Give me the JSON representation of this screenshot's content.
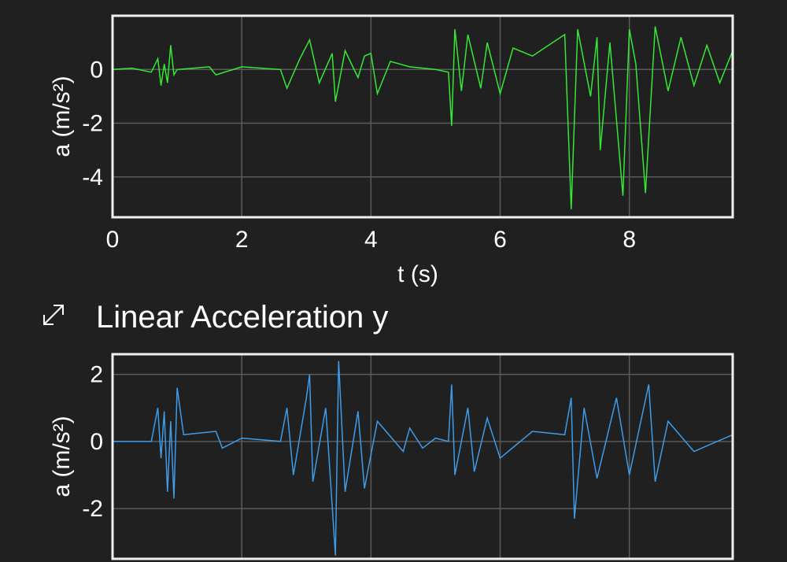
{
  "chart_data": [
    {
      "type": "line",
      "title": "",
      "xlabel": "t (s)",
      "ylabel": "a (m/s²)",
      "xlim": [
        0,
        9.6
      ],
      "ylim": [
        -5.5,
        2
      ],
      "xticks": [
        0,
        2,
        4,
        6,
        8
      ],
      "yticks": [
        0,
        -2,
        -4
      ],
      "grid": true,
      "color": "#35e834",
      "series": [
        {
          "values": [
            [
              0.0,
              0.0
            ],
            [
              0.3,
              0.05
            ],
            [
              0.6,
              -0.1
            ],
            [
              0.7,
              0.4
            ],
            [
              0.75,
              -0.6
            ],
            [
              0.8,
              0.2
            ],
            [
              0.85,
              -0.5
            ],
            [
              0.9,
              0.9
            ],
            [
              0.95,
              -0.2
            ],
            [
              1.0,
              0.0
            ],
            [
              1.5,
              0.1
            ],
            [
              1.6,
              -0.2
            ],
            [
              2.0,
              0.1
            ],
            [
              2.6,
              0.0
            ],
            [
              2.7,
              -0.7
            ],
            [
              2.9,
              0.4
            ],
            [
              3.05,
              1.1
            ],
            [
              3.2,
              -0.5
            ],
            [
              3.4,
              0.6
            ],
            [
              3.45,
              -1.2
            ],
            [
              3.6,
              0.7
            ],
            [
              3.8,
              -0.3
            ],
            [
              3.9,
              0.5
            ],
            [
              4.0,
              0.6
            ],
            [
              4.1,
              -0.9
            ],
            [
              4.3,
              0.3
            ],
            [
              4.6,
              0.1
            ],
            [
              5.0,
              0.0
            ],
            [
              5.2,
              -0.1
            ],
            [
              5.25,
              -2.1
            ],
            [
              5.3,
              1.5
            ],
            [
              5.4,
              -0.8
            ],
            [
              5.5,
              1.3
            ],
            [
              5.7,
              -0.7
            ],
            [
              5.8,
              1.0
            ],
            [
              6.0,
              -0.9
            ],
            [
              6.2,
              0.8
            ],
            [
              6.5,
              0.5
            ],
            [
              7.0,
              1.3
            ],
            [
              7.1,
              -5.2
            ],
            [
              7.2,
              1.5
            ],
            [
              7.4,
              -1.0
            ],
            [
              7.5,
              1.2
            ],
            [
              7.55,
              -3.0
            ],
            [
              7.7,
              1.0
            ],
            [
              7.9,
              -4.7
            ],
            [
              8.0,
              1.5
            ],
            [
              8.1,
              0.2
            ],
            [
              8.25,
              -4.6
            ],
            [
              8.4,
              1.6
            ],
            [
              8.6,
              -0.8
            ],
            [
              8.8,
              1.2
            ],
            [
              9.0,
              -0.6
            ],
            [
              9.2,
              0.9
            ],
            [
              9.4,
              -0.5
            ],
            [
              9.6,
              0.7
            ]
          ]
        }
      ]
    },
    {
      "type": "line",
      "title": "",
      "xlabel": "",
      "ylabel": "a (m/s²)",
      "xlim": [
        0,
        9.6
      ],
      "ylim": [
        -3.5,
        2.6
      ],
      "xticks": [
        0,
        2,
        4,
        6,
        8
      ],
      "yticks": [
        2,
        0,
        -2
      ],
      "grid": true,
      "color": "#3d9be8",
      "series": [
        {
          "values": [
            [
              0.0,
              0.0
            ],
            [
              0.6,
              0.0
            ],
            [
              0.7,
              1.0
            ],
            [
              0.75,
              -0.5
            ],
            [
              0.8,
              0.9
            ],
            [
              0.85,
              -1.5
            ],
            [
              0.9,
              0.6
            ],
            [
              0.95,
              -1.7
            ],
            [
              1.0,
              1.6
            ],
            [
              1.1,
              0.2
            ],
            [
              1.6,
              0.3
            ],
            [
              1.7,
              -0.2
            ],
            [
              2.0,
              0.1
            ],
            [
              2.6,
              0.0
            ],
            [
              2.7,
              1.0
            ],
            [
              2.8,
              -1.0
            ],
            [
              3.0,
              1.3
            ],
            [
              3.05,
              2.0
            ],
            [
              3.1,
              -1.2
            ],
            [
              3.3,
              1.0
            ],
            [
              3.45,
              -3.4
            ],
            [
              3.5,
              2.4
            ],
            [
              3.6,
              -1.5
            ],
            [
              3.8,
              0.9
            ],
            [
              3.9,
              -1.4
            ],
            [
              4.1,
              0.6
            ],
            [
              4.5,
              -0.3
            ],
            [
              4.6,
              0.4
            ],
            [
              4.8,
              -0.2
            ],
            [
              5.0,
              0.1
            ],
            [
              5.2,
              0.0
            ],
            [
              5.25,
              1.7
            ],
            [
              5.3,
              -1.0
            ],
            [
              5.5,
              1.0
            ],
            [
              5.6,
              -0.9
            ],
            [
              5.8,
              0.7
            ],
            [
              6.0,
              -0.5
            ],
            [
              6.5,
              0.3
            ],
            [
              7.0,
              0.2
            ],
            [
              7.1,
              1.3
            ],
            [
              7.15,
              -2.3
            ],
            [
              7.3,
              1.0
            ],
            [
              7.5,
              -1.1
            ],
            [
              7.8,
              1.3
            ],
            [
              8.0,
              -1.0
            ],
            [
              8.3,
              1.7
            ],
            [
              8.4,
              -1.2
            ],
            [
              8.6,
              0.6
            ],
            [
              9.0,
              -0.3
            ],
            [
              9.6,
              0.2
            ]
          ]
        }
      ]
    }
  ],
  "panel_y": {
    "title": "Linear Acceleration y",
    "expand_icon": "expand-arrows-icon"
  }
}
